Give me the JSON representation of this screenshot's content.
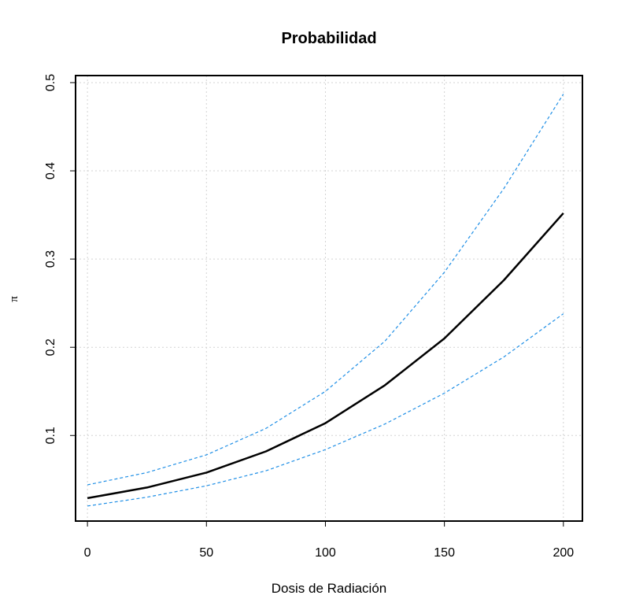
{
  "chart_data": {
    "type": "line",
    "title": "Probabilidad",
    "xlabel": "Dosis de Radiación",
    "ylabel": "π",
    "xlim": [
      -5,
      208
    ],
    "ylim": [
      0.003,
      0.508
    ],
    "x_ticks": [
      "0",
      "50",
      "100",
      "150",
      "200"
    ],
    "y_ticks": [
      "0.1",
      "0.2",
      "0.3",
      "0.4",
      "0.5"
    ],
    "grid": true,
    "legend": "none",
    "x": [
      0,
      25,
      50,
      75,
      100,
      125,
      150,
      175,
      200
    ],
    "series": [
      {
        "role": "fit",
        "color": "#000000",
        "style": "solid",
        "values": [
          0.029,
          0.041,
          0.058,
          0.082,
          0.114,
          0.157,
          0.21,
          0.276,
          0.352
        ]
      },
      {
        "role": "upper",
        "color": "#1f8fe6",
        "style": "dashed",
        "values": [
          0.044,
          0.058,
          0.078,
          0.108,
          0.15,
          0.207,
          0.285,
          0.38,
          0.487
        ]
      },
      {
        "role": "lower",
        "color": "#1f8fe6",
        "style": "dashed",
        "values": [
          0.02,
          0.03,
          0.043,
          0.06,
          0.084,
          0.113,
          0.148,
          0.189,
          0.238
        ]
      }
    ]
  }
}
